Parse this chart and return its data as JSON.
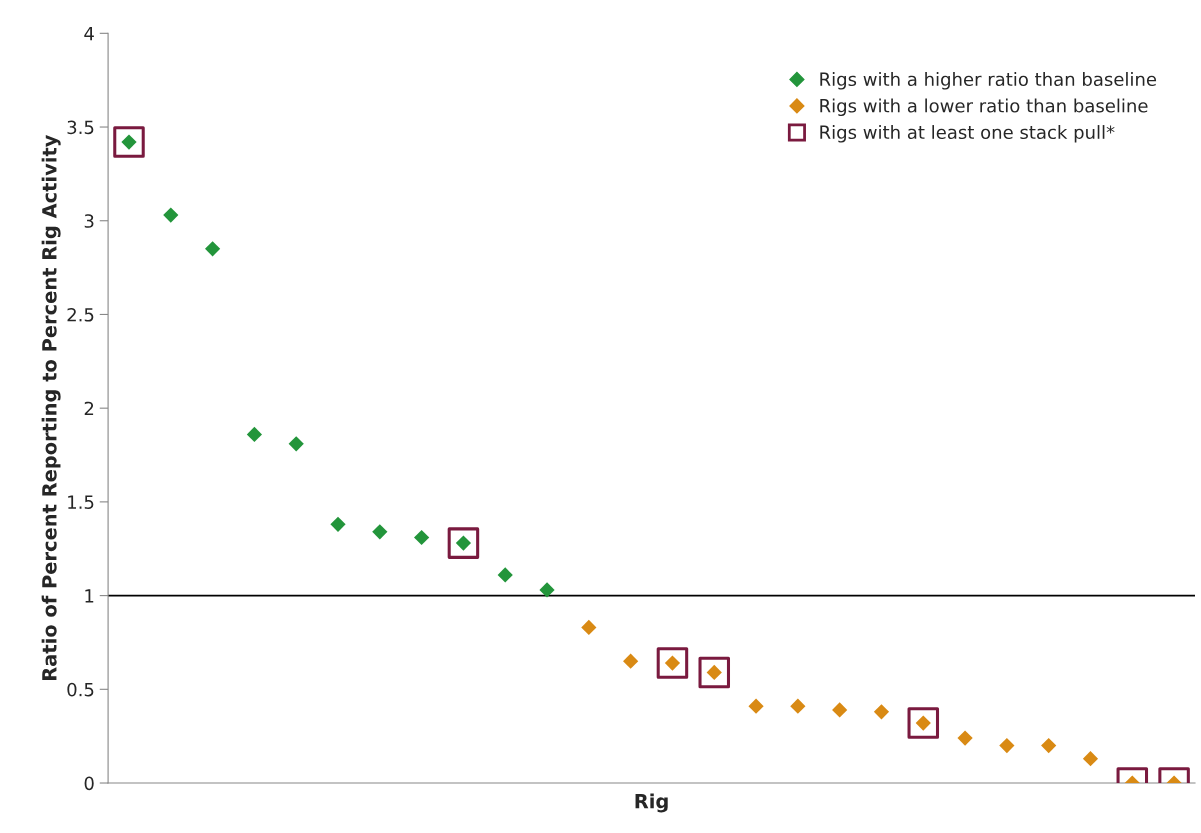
{
  "chart_data": {
    "type": "scatter",
    "xlabel": "Rig",
    "ylabel": "Ratio of Percent Reporting to Percent Rig Activity",
    "categories": [
      null,
      null,
      null,
      null,
      null,
      null,
      null,
      null,
      null,
      null,
      null,
      null,
      null,
      null,
      null,
      null,
      null,
      null,
      null,
      null,
      null,
      null,
      null,
      null,
      null,
      null
    ],
    "series": [
      {
        "name": "Rigs with a higher ratio than baseline",
        "color": "#23953b",
        "marker": "diamond",
        "values": [
          3.42,
          3.03,
          2.85,
          1.86,
          1.81,
          1.38,
          1.34,
          1.31,
          1.28,
          1.11,
          1.03,
          null,
          null,
          null,
          null,
          null,
          null,
          null,
          null,
          null,
          null,
          null,
          null,
          null,
          null,
          null
        ]
      },
      {
        "name": "Rigs with a lower ratio than baseline",
        "color": "#d98a14",
        "marker": "diamond",
        "values": [
          null,
          null,
          null,
          null,
          null,
          null,
          null,
          null,
          null,
          null,
          null,
          0.83,
          0.65,
          0.64,
          0.59,
          0.41,
          0.41,
          0.39,
          0.38,
          0.32,
          0.24,
          0.2,
          0.2,
          0.13,
          0,
          0
        ]
      },
      {
        "name": "Rigs with at least one stack pull*",
        "color": "#7a1a3f",
        "marker": "square",
        "values": [
          3.42,
          null,
          null,
          null,
          null,
          null,
          null,
          null,
          1.28,
          null,
          null,
          null,
          null,
          0.64,
          0.59,
          null,
          null,
          null,
          null,
          0.32,
          null,
          null,
          null,
          null,
          0,
          0
        ]
      }
    ],
    "ylim": [
      0,
      4
    ],
    "yticks": [
      0,
      0.5,
      1,
      1.5,
      2,
      2.5,
      3,
      3.5,
      4
    ],
    "ref_lines": [
      {
        "axis": "y",
        "value": 1,
        "color": "#000000"
      }
    ],
    "legend": "top right",
    "grid": false
  }
}
